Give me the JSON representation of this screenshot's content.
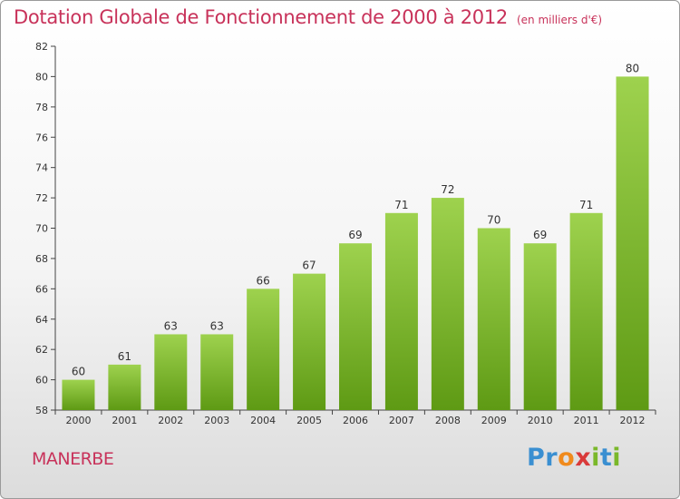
{
  "title": "Dotation Globale de Fonctionnement de 2000 à 2012",
  "unit_note": "(en milliers d'€)",
  "commune": "MANERBE",
  "brand": {
    "letters": [
      "P",
      "r",
      "o",
      "x",
      "i",
      "t",
      "i"
    ],
    "colors": [
      "#3a8fd1",
      "#3a8fd1",
      "#f08a1c",
      "#d93a3a",
      "#7ab82a",
      "#3a8fd1",
      "#7ab82a"
    ]
  },
  "colors": {
    "accent": "#c8325a",
    "bar_top": "#9ed24e",
    "bar_bottom": "#5e9a14",
    "axis": "#444444"
  },
  "chart_data": {
    "type": "bar",
    "title": "Dotation Globale de Fonctionnement de 2000 à 2012",
    "subtitle": "(en milliers d'€)",
    "xlabel": "",
    "ylabel": "",
    "categories": [
      "2000",
      "2001",
      "2002",
      "2003",
      "2004",
      "2005",
      "2006",
      "2007",
      "2008",
      "2009",
      "2010",
      "2011",
      "2012"
    ],
    "values": [
      60,
      61,
      63,
      63,
      66,
      67,
      69,
      71,
      72,
      70,
      69,
      71,
      80
    ],
    "ylim": [
      58,
      82
    ],
    "yticks": [
      58,
      60,
      62,
      64,
      66,
      68,
      70,
      72,
      74,
      76,
      78,
      80,
      82
    ],
    "grid": false,
    "legend": "none"
  }
}
